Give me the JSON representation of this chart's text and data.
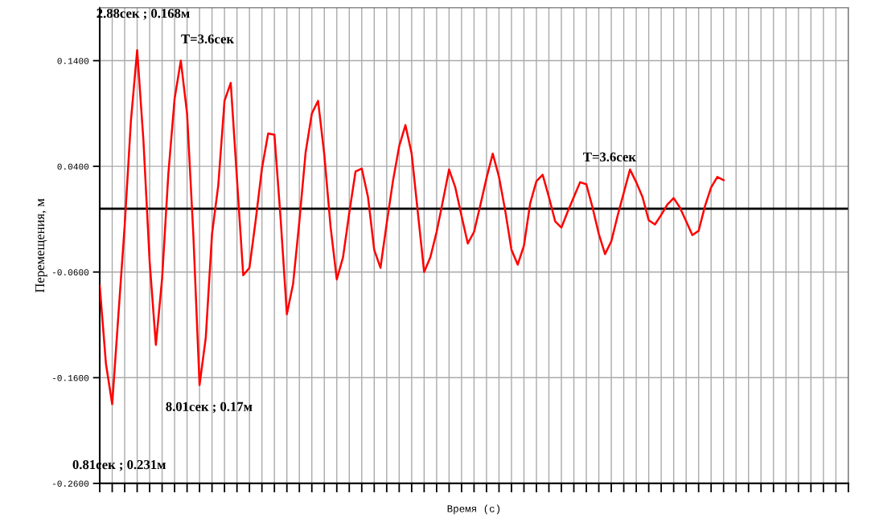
{
  "chart_data": {
    "type": "line",
    "xlabel": "Время (с)",
    "ylabel": "Перемещения, м",
    "categories": [
      null,
      null,
      null,
      null,
      null,
      null,
      null,
      null,
      null,
      null,
      null,
      null,
      null,
      null,
      null,
      null,
      null,
      null,
      null,
      null,
      null,
      null,
      null,
      null,
      null,
      null,
      null,
      null,
      null,
      null,
      null,
      null,
      null,
      null,
      null,
      null,
      null,
      null,
      null,
      null,
      null,
      null,
      null,
      null,
      null,
      null,
      null,
      null,
      null,
      null,
      null,
      null,
      null,
      null,
      null,
      null,
      null,
      null,
      null,
      null,
      null,
      null,
      null,
      null,
      null,
      null,
      null,
      null,
      null,
      null,
      null,
      null,
      null,
      null,
      null,
      null,
      null,
      null,
      null,
      null,
      null,
      null,
      null,
      null,
      null,
      null,
      null,
      null,
      null,
      null,
      null,
      null,
      null,
      null,
      null,
      null,
      null,
      null,
      null,
      null,
      null,
      null,
      null,
      null,
      null,
      null,
      null,
      null,
      null,
      null,
      null,
      null,
      null,
      null,
      null,
      null,
      null,
      null,
      null,
      null,
      null
    ],
    "ylim": [
      -0.26,
      0.19
    ],
    "yticks": [
      {
        "value": -0.26,
        "label": "-0.2600"
      },
      {
        "value": -0.16,
        "label": "-0.1600"
      },
      {
        "value": -0.06,
        "label": "-0.0600"
      },
      {
        "value": 0.04,
        "label": "0.0400"
      },
      {
        "value": 0.14,
        "label": "0.1400"
      }
    ],
    "grid": true,
    "ref_lines": [
      {
        "axis": "y",
        "value": 0,
        "color": "#000000"
      }
    ],
    "series": [
      {
        "color": "#ff0000",
        "values": [
          -0.073,
          -0.147,
          -0.185,
          -0.1,
          -0.016,
          0.083,
          0.15,
          0.065,
          -0.05,
          -0.129,
          -0.066,
          0.033,
          0.104,
          0.14,
          0.09,
          -0.024,
          -0.167,
          -0.122,
          -0.024,
          0.022,
          0.102,
          0.119,
          0.028,
          -0.063,
          -0.056,
          -0.011,
          0.038,
          0.071,
          0.07,
          -0.01,
          -0.1,
          -0.071,
          -0.012,
          0.053,
          0.09,
          0.102,
          0.051,
          -0.017,
          -0.067,
          -0.046,
          -0.004,
          0.035,
          0.038,
          0.011,
          -0.039,
          -0.056,
          -0.014,
          0.026,
          0.059,
          0.079,
          0.052,
          -0.004,
          -0.06,
          -0.046,
          -0.022,
          0.007,
          0.037,
          0.02,
          -0.007,
          -0.033,
          -0.022,
          0.003,
          0.029,
          0.052,
          0.03,
          -0.002,
          -0.039,
          -0.053,
          -0.035,
          0.005,
          0.026,
          0.032,
          0.011,
          -0.012,
          -0.018,
          -0.003,
          0.011,
          0.025,
          0.023,
          0.001,
          -0.024,
          -0.043,
          -0.031,
          -0.007,
          0.015,
          0.037,
          0.025,
          0.011,
          -0.011,
          -0.015,
          -0.006,
          0.004,
          0.01,
          0.001,
          -0.012,
          -0.025,
          -0.021,
          0.002,
          0.02,
          0.03,
          0.027,
          null,
          null,
          null,
          null,
          null,
          null,
          null,
          null,
          null,
          null,
          null,
          null,
          null,
          null,
          null,
          null,
          null,
          null,
          null,
          null
        ]
      }
    ],
    "marker": "none",
    "line_style": "solid",
    "annotations": [
      "2.88сек ; 0.168м",
      "T=3.6сек",
      "8.01сек ; 0.17м",
      "0.81сек ; 0.231м",
      "T=3.6сек"
    ]
  }
}
